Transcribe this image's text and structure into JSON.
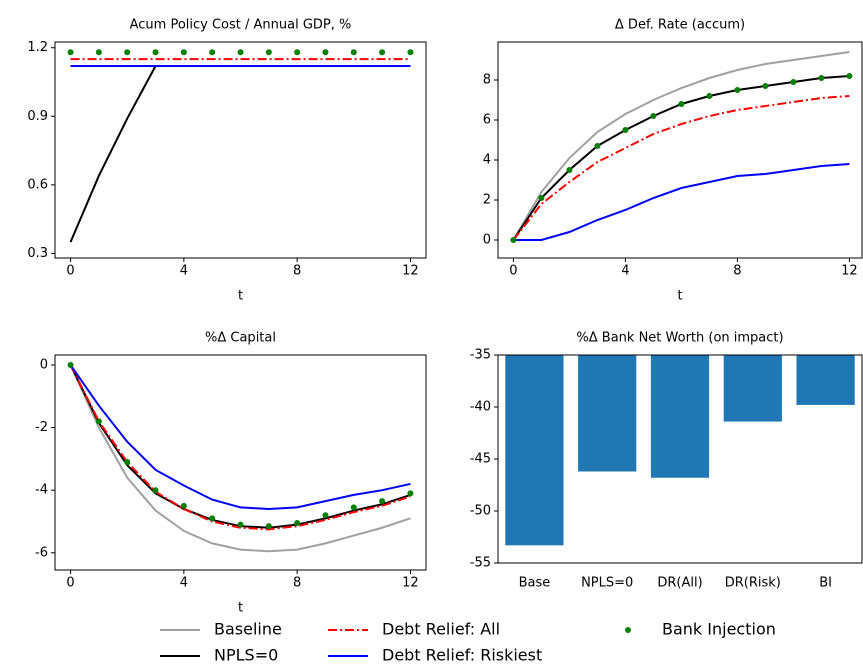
{
  "chart_data": [
    {
      "type": "line",
      "title": "Acum Policy Cost / Annual GDP, %",
      "x_label": "t",
      "x": [
        0,
        1,
        2,
        3,
        4,
        5,
        6,
        7,
        8,
        9,
        10,
        11,
        12
      ],
      "xlim": [
        -0.55,
        12.55
      ],
      "xticks": [
        0,
        4,
        8,
        12
      ],
      "ylim": [
        0.28,
        1.225
      ],
      "yticks": [
        0.3,
        0.6,
        0.9,
        1.2
      ],
      "series": [
        {
          "name": "NPLS=0",
          "color": "#000000",
          "style": "solid",
          "values": [
            0.35,
            0.64,
            0.89,
            1.12,
            1.12,
            1.12,
            1.12,
            1.12,
            1.12,
            1.12,
            1.12,
            1.12,
            1.12
          ]
        },
        {
          "name": "Debt Relief: All",
          "color": "#ff0000",
          "style": "dashdot",
          "values": [
            1.15,
            1.15,
            1.15,
            1.15,
            1.15,
            1.15,
            1.15,
            1.15,
            1.15,
            1.15,
            1.15,
            1.15,
            1.15
          ]
        },
        {
          "name": "Debt Relief: Riskiest",
          "color": "#0000ff",
          "style": "solid",
          "values": [
            1.12,
            1.12,
            1.12,
            1.12,
            1.12,
            1.12,
            1.12,
            1.12,
            1.12,
            1.12,
            1.12,
            1.12,
            1.12
          ]
        },
        {
          "name": "Bank Injection",
          "color": "#008000",
          "style": "dots",
          "values": [
            1.18,
            1.18,
            1.18,
            1.18,
            1.18,
            1.18,
            1.18,
            1.18,
            1.18,
            1.18,
            1.18,
            1.18,
            1.18
          ]
        }
      ]
    },
    {
      "type": "line",
      "title": "Δ Def. Rate (accum)",
      "x_label": "t",
      "x": [
        0,
        1,
        2,
        3,
        4,
        5,
        6,
        7,
        8,
        9,
        10,
        11,
        12
      ],
      "xlim": [
        -0.55,
        12.45
      ],
      "xticks": [
        0,
        4,
        8,
        12
      ],
      "ylim": [
        -0.9,
        9.9
      ],
      "yticks": [
        0,
        2,
        4,
        6,
        8
      ],
      "series": [
        {
          "name": "Baseline",
          "color": "#a0a0a0",
          "style": "solid",
          "values": [
            0,
            2.4,
            4.1,
            5.4,
            6.3,
            7.0,
            7.6,
            8.1,
            8.5,
            8.8,
            9.0,
            9.2,
            9.4
          ]
        },
        {
          "name": "NPLS=0",
          "color": "#000000",
          "style": "solid",
          "values": [
            0,
            2.1,
            3.5,
            4.7,
            5.5,
            6.2,
            6.8,
            7.2,
            7.5,
            7.7,
            7.9,
            8.1,
            8.2
          ]
        },
        {
          "name": "Debt Relief: All",
          "color": "#ff0000",
          "style": "dashdot",
          "values": [
            0,
            1.8,
            2.9,
            3.9,
            4.6,
            5.3,
            5.8,
            6.2,
            6.5,
            6.7,
            6.9,
            7.1,
            7.2
          ]
        },
        {
          "name": "Debt Relief: Riskiest",
          "color": "#0000ff",
          "style": "solid",
          "values": [
            0,
            0,
            0.4,
            1.0,
            1.5,
            2.1,
            2.6,
            2.9,
            3.2,
            3.3,
            3.5,
            3.7,
            3.8
          ]
        },
        {
          "name": "Bank Injection",
          "color": "#008000",
          "style": "dots",
          "values": [
            0,
            2.1,
            3.5,
            4.7,
            5.5,
            6.2,
            6.8,
            7.2,
            7.5,
            7.7,
            7.9,
            8.1,
            8.2
          ]
        }
      ]
    },
    {
      "type": "line",
      "title": "%Δ Capital",
      "x_label": "t",
      "x": [
        0,
        1,
        2,
        3,
        4,
        5,
        6,
        7,
        8,
        9,
        10,
        11,
        12
      ],
      "xlim": [
        -0.55,
        12.55
      ],
      "xticks": [
        0,
        4,
        8,
        12
      ],
      "ylim": [
        -6.55,
        0.32
      ],
      "yticks": [
        0,
        -2,
        -4,
        -6
      ],
      "series": [
        {
          "name": "Baseline",
          "color": "#a0a0a0",
          "style": "solid",
          "values": [
            0,
            -2.0,
            -3.6,
            -4.65,
            -5.3,
            -5.7,
            -5.9,
            -5.95,
            -5.9,
            -5.7,
            -5.45,
            -5.2,
            -4.9
          ]
        },
        {
          "name": "NPLS=0",
          "color": "#000000",
          "style": "solid",
          "values": [
            0,
            -1.85,
            -3.2,
            -4.1,
            -4.6,
            -4.95,
            -5.15,
            -5.2,
            -5.1,
            -4.9,
            -4.65,
            -4.45,
            -4.15
          ]
        },
        {
          "name": "Debt Relief: All",
          "color": "#ff0000",
          "style": "dashdot",
          "values": [
            0,
            -1.8,
            -3.1,
            -4.05,
            -4.6,
            -5.0,
            -5.2,
            -5.25,
            -5.15,
            -4.95,
            -4.7,
            -4.5,
            -4.2
          ]
        },
        {
          "name": "Debt Relief: Riskiest",
          "color": "#0000ff",
          "style": "solid",
          "values": [
            0,
            -1.3,
            -2.45,
            -3.35,
            -3.85,
            -4.3,
            -4.55,
            -4.6,
            -4.55,
            -4.35,
            -4.15,
            -4.0,
            -3.8
          ]
        },
        {
          "name": "Bank Injection",
          "color": "#008000",
          "style": "dots",
          "values": [
            0,
            -1.8,
            -3.1,
            -4.0,
            -4.5,
            -4.9,
            -5.1,
            -5.15,
            -5.05,
            -4.8,
            -4.55,
            -4.35,
            -4.1
          ]
        }
      ]
    },
    {
      "type": "bar",
      "title": "%Δ Bank Net Worth (on impact)",
      "categories": [
        "Base",
        "NPLS=0",
        "DR(All)",
        "DR(Risk)",
        "BI"
      ],
      "values": [
        -53.3,
        -46.2,
        -46.8,
        -41.4,
        -39.8
      ],
      "color": "#1f77b4",
      "ylim": [
        -55,
        -35
      ],
      "yticks": [
        -35,
        -40,
        -45,
        -50,
        -55
      ]
    }
  ]
}
